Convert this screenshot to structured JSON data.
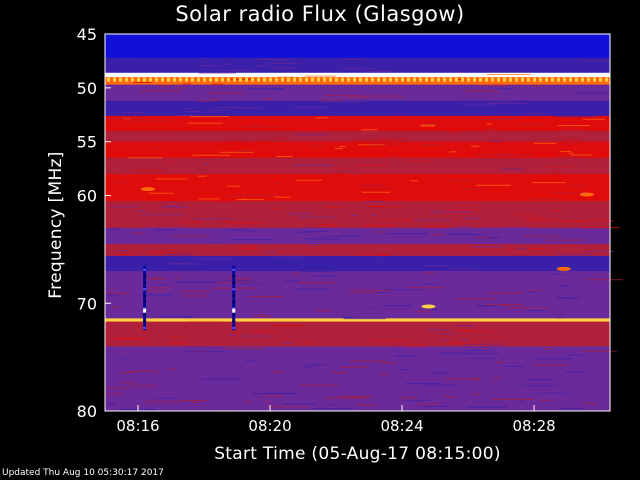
{
  "chart_data": {
    "type": "heatmap",
    "title": "Solar radio Flux (Glasgow)",
    "xlabel": "Start Time (05-Aug-17 08:15:00)",
    "ylabel": "Frequency [MHz]",
    "xlim_minutes_after_08_00": [
      15.0,
      30.3
    ],
    "ylim_mhz": [
      45,
      80
    ],
    "x_ticks": [
      "08:16",
      "08:20",
      "08:24",
      "08:28"
    ],
    "y_ticks": [
      45,
      50,
      55,
      60,
      70,
      80
    ],
    "colormap": [
      "#1010d8",
      "#3a1fa8",
      "#6a2a9a",
      "#b0203a",
      "#e00c0c",
      "#ff6a10",
      "#ffd040",
      "#ffffff"
    ],
    "bands": [
      {
        "from": 45.0,
        "to": 47.2,
        "level": 0
      },
      {
        "from": 47.2,
        "to": 48.6,
        "level": 1
      },
      {
        "from": 48.6,
        "to": 49.0,
        "level": 7
      },
      {
        "from": 49.0,
        "to": 49.7,
        "level": 5
      },
      {
        "from": 49.7,
        "to": 51.2,
        "level": 2
      },
      {
        "from": 51.2,
        "to": 52.6,
        "level": 1
      },
      {
        "from": 52.6,
        "to": 54.0,
        "level": 4
      },
      {
        "from": 54.0,
        "to": 55.0,
        "level": 3
      },
      {
        "from": 55.0,
        "to": 56.5,
        "level": 4
      },
      {
        "from": 56.5,
        "to": 58.0,
        "level": 3
      },
      {
        "from": 58.0,
        "to": 60.5,
        "level": 4
      },
      {
        "from": 60.5,
        "to": 63.0,
        "level": 3
      },
      {
        "from": 63.0,
        "to": 64.5,
        "level": 2
      },
      {
        "from": 64.5,
        "to": 65.6,
        "level": 3
      },
      {
        "from": 65.6,
        "to": 67.0,
        "level": 1
      },
      {
        "from": 67.0,
        "to": 71.4,
        "level": 2
      },
      {
        "from": 71.4,
        "to": 71.7,
        "level": 6
      },
      {
        "from": 71.7,
        "to": 74.0,
        "level": 3
      },
      {
        "from": 74.0,
        "to": 80.0,
        "level": 2
      }
    ],
    "bursts": [
      {
        "t": 16.2,
        "f_from": 66.5,
        "f_to": 72.5
      },
      {
        "t": 18.9,
        "f_from": 66.5,
        "f_to": 72.5
      }
    ],
    "events": [
      {
        "t": 28.9,
        "f": 66.8,
        "level": 5
      },
      {
        "t": 24.8,
        "f": 70.3,
        "level": 6
      },
      {
        "t": 29.6,
        "f": 59.9,
        "level": 5
      },
      {
        "t": 16.3,
        "f": 59.4,
        "level": 5
      }
    ]
  },
  "footer": {
    "updated": "Updated Thu Aug 10 05:30:17 2017"
  }
}
